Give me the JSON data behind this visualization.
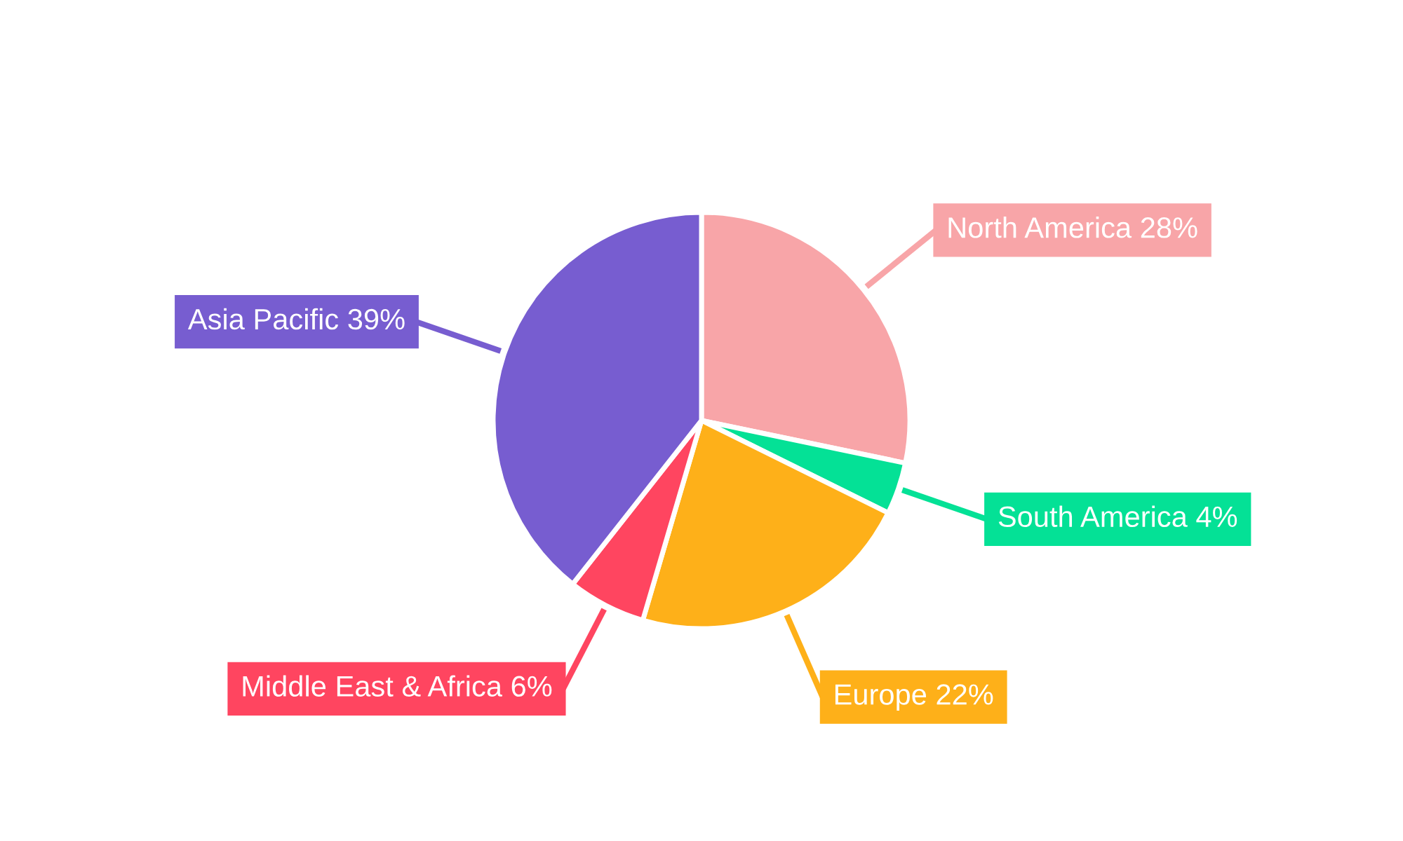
{
  "chart_data": {
    "type": "pie",
    "categories": [
      "North America",
      "South America",
      "Europe",
      "Middle East & Africa",
      "Asia Pacific"
    ],
    "values": [
      28,
      4,
      22,
      6,
      39
    ],
    "value_labels": [
      "28%",
      "4%",
      "22%",
      "6%",
      "39%"
    ],
    "colors": [
      "#f8a5a8",
      "#04e196",
      "#feb019",
      "#ff4560",
      "#775dd0"
    ],
    "legend": false
  }
}
